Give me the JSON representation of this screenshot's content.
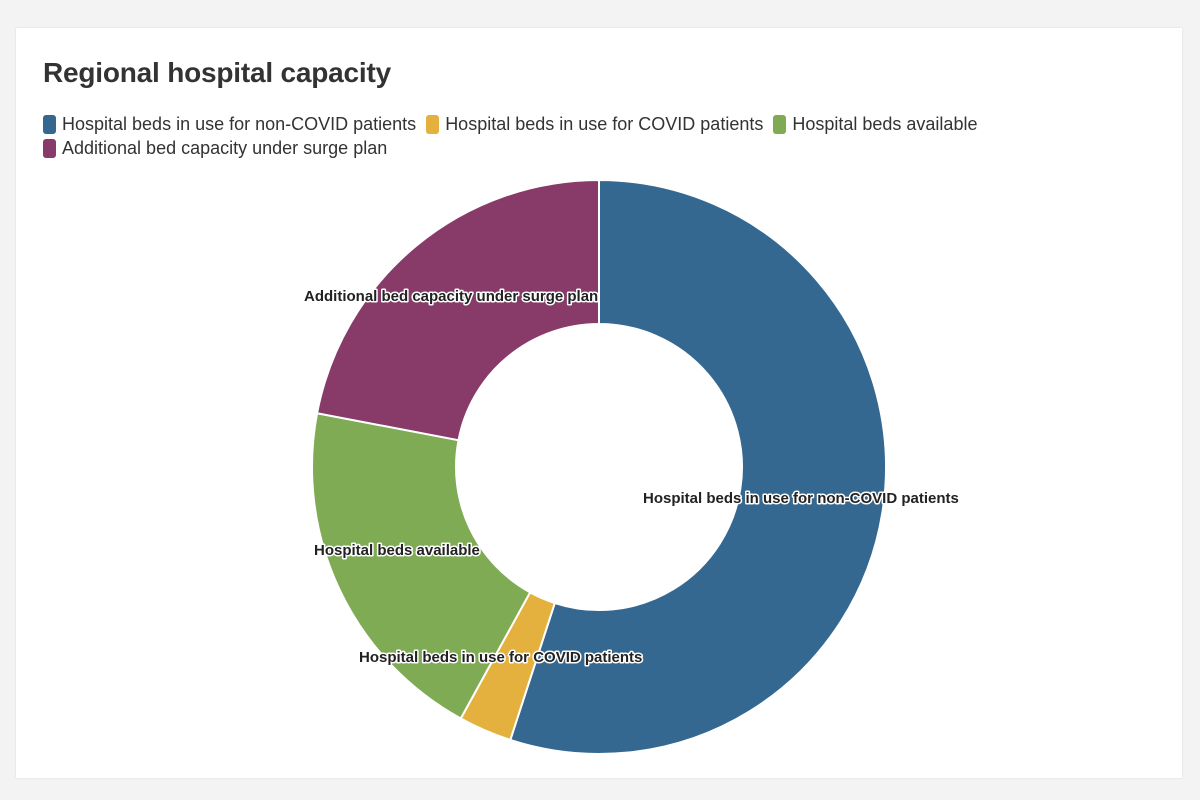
{
  "chart_data": {
    "type": "pie",
    "title": "Regional hospital capacity",
    "donut": true,
    "legend_position": "top-left",
    "slices": [
      {
        "label": "Hospital beds in use for non-COVID patients",
        "value": 55,
        "color": "#346891"
      },
      {
        "label": "Hospital beds in use for COVID patients",
        "value": 3,
        "color": "#e4b13f"
      },
      {
        "label": "Hospital beds available",
        "value": 20,
        "color": "#80ab55"
      },
      {
        "label": "Additional bed capacity under surge plan",
        "value": 22,
        "color": "#883b69"
      }
    ]
  }
}
